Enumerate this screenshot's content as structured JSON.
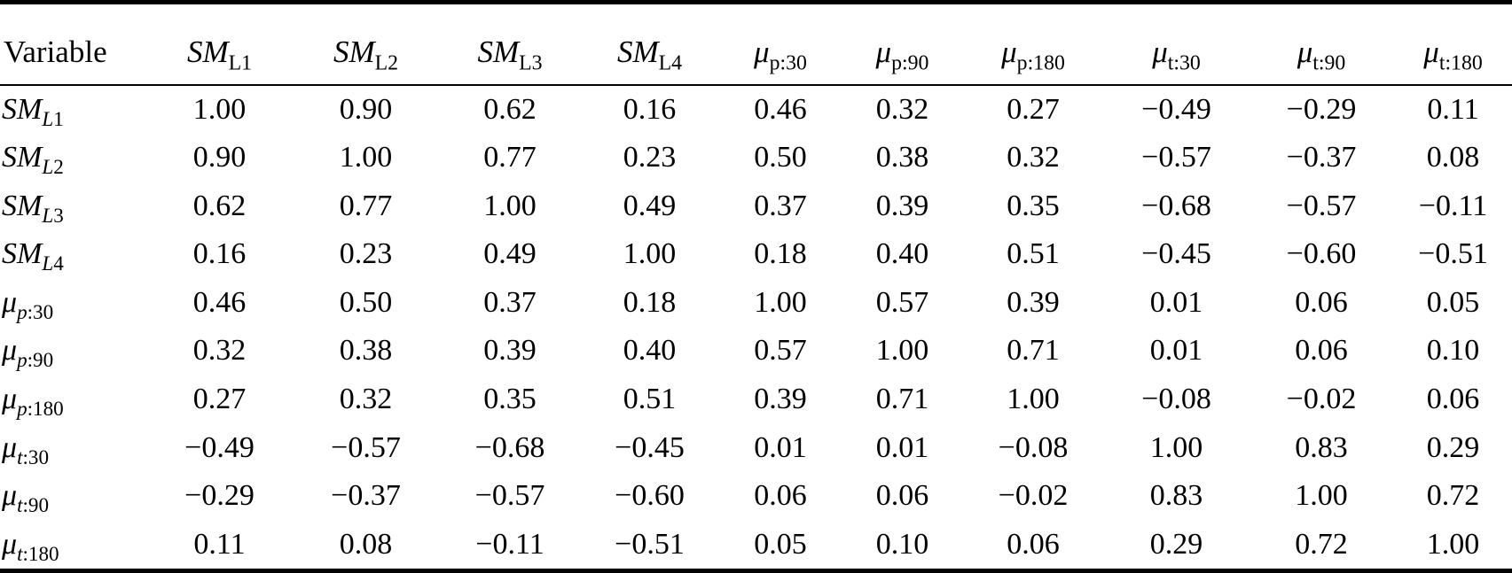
{
  "table": {
    "header": {
      "variable": "Variable",
      "columns": [
        {
          "main": "SM",
          "main_italic": true,
          "sub_it": "",
          "sub_up": "L1"
        },
        {
          "main": "SM",
          "main_italic": true,
          "sub_it": "",
          "sub_up": "L2"
        },
        {
          "main": "SM",
          "main_italic": true,
          "sub_it": "",
          "sub_up": "L3"
        },
        {
          "main": "SM",
          "main_italic": true,
          "sub_it": "",
          "sub_up": "L4"
        },
        {
          "main": "μ",
          "main_italic": true,
          "sub_it": "",
          "sub_up": "p:30"
        },
        {
          "main": "μ",
          "main_italic": true,
          "sub_it": "",
          "sub_up": "p:90"
        },
        {
          "main": "μ",
          "main_italic": true,
          "sub_it": "",
          "sub_up": "p:180"
        },
        {
          "main": "μ",
          "main_italic": true,
          "sub_it": "",
          "sub_up": "t:30"
        },
        {
          "main": "μ",
          "main_italic": true,
          "sub_it": "",
          "sub_up": "t:90"
        },
        {
          "main": "μ",
          "main_italic": true,
          "sub_it": "",
          "sub_up": "t:180"
        }
      ]
    },
    "rows": [
      {
        "label": {
          "main": "SM",
          "main_italic": true,
          "sub_it": "L",
          "sub_up": "1"
        },
        "values": [
          "1.00",
          "0.90",
          "0.62",
          "0.16",
          "0.46",
          "0.32",
          "0.27",
          "−0.49",
          "−0.29",
          "0.11"
        ]
      },
      {
        "label": {
          "main": "SM",
          "main_italic": true,
          "sub_it": "L",
          "sub_up": "2"
        },
        "values": [
          "0.90",
          "1.00",
          "0.77",
          "0.23",
          "0.50",
          "0.38",
          "0.32",
          "−0.57",
          "−0.37",
          "0.08"
        ]
      },
      {
        "label": {
          "main": "SM",
          "main_italic": true,
          "sub_it": "L",
          "sub_up": "3"
        },
        "values": [
          "0.62",
          "0.77",
          "1.00",
          "0.49",
          "0.37",
          "0.39",
          "0.35",
          "−0.68",
          "−0.57",
          "−0.11"
        ]
      },
      {
        "label": {
          "main": "SM",
          "main_italic": true,
          "sub_it": "L",
          "sub_up": "4"
        },
        "values": [
          "0.16",
          "0.23",
          "0.49",
          "1.00",
          "0.18",
          "0.40",
          "0.51",
          "−0.45",
          "−0.60",
          "−0.51"
        ]
      },
      {
        "label": {
          "main": "μ",
          "main_italic": true,
          "sub_it": "p",
          "sub_up": ":30"
        },
        "values": [
          "0.46",
          "0.50",
          "0.37",
          "0.18",
          "1.00",
          "0.57",
          "0.39",
          "0.01",
          "0.06",
          "0.05"
        ]
      },
      {
        "label": {
          "main": "μ",
          "main_italic": true,
          "sub_it": "p",
          "sub_up": ":90"
        },
        "values": [
          "0.32",
          "0.38",
          "0.39",
          "0.40",
          "0.57",
          "1.00",
          "0.71",
          "0.01",
          "0.06",
          "0.10"
        ]
      },
      {
        "label": {
          "main": "μ",
          "main_italic": true,
          "sub_it": "p",
          "sub_up": ":180"
        },
        "values": [
          "0.27",
          "0.32",
          "0.35",
          "0.51",
          "0.39",
          "0.71",
          "1.00",
          "−0.08",
          "−0.02",
          "0.06"
        ]
      },
      {
        "label": {
          "main": "μ",
          "main_italic": true,
          "sub_it": "t",
          "sub_up": ":30"
        },
        "values": [
          "−0.49",
          "−0.57",
          "−0.68",
          "−0.45",
          "0.01",
          "0.01",
          "−0.08",
          "1.00",
          "0.83",
          "0.29"
        ]
      },
      {
        "label": {
          "main": "μ",
          "main_italic": true,
          "sub_it": "t",
          "sub_up": ":90"
        },
        "values": [
          "−0.29",
          "−0.37",
          "−0.57",
          "−0.60",
          "0.06",
          "0.06",
          "−0.02",
          "0.83",
          "1.00",
          "0.72"
        ]
      },
      {
        "label": {
          "main": "μ",
          "main_italic": true,
          "sub_it": "t",
          "sub_up": ":180"
        },
        "values": [
          "0.11",
          "0.08",
          "−0.11",
          "−0.51",
          "0.05",
          "0.10",
          "0.06",
          "0.29",
          "0.72",
          "1.00"
        ]
      }
    ]
  }
}
